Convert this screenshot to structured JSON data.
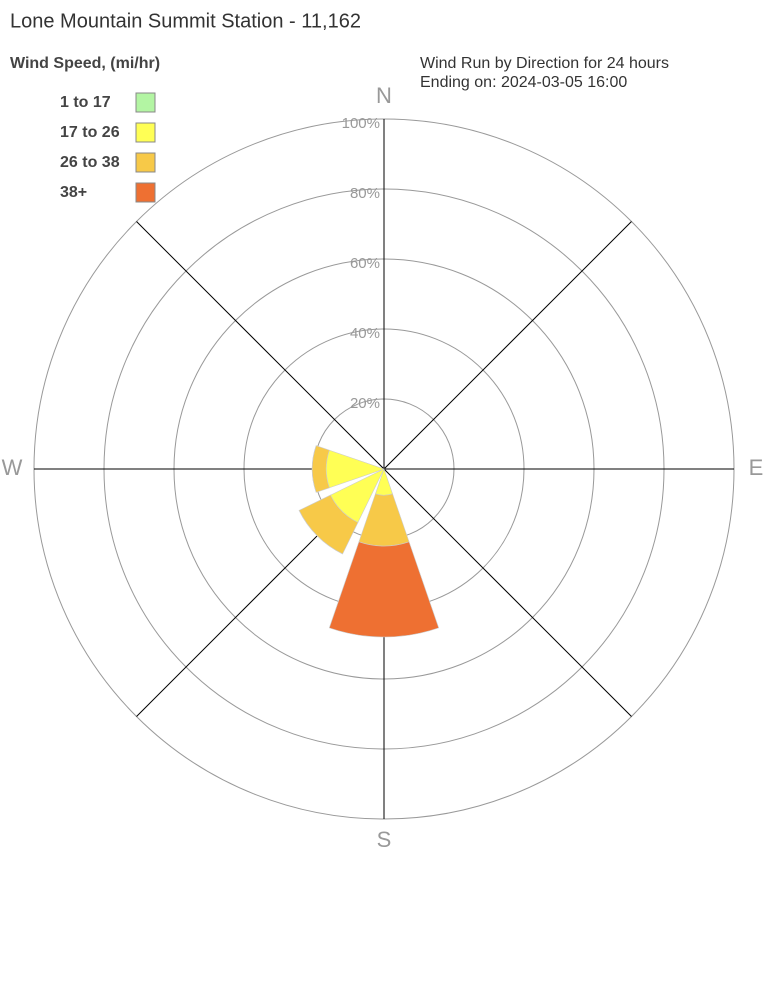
{
  "chart_data": {
    "type": "rose",
    "title": "Lone Mountain Summit Station - 11,162",
    "subtitle": [
      "Wind Run by Direction for 24 hours",
      "Ending on: 2024-03-05 16:00"
    ],
    "legend_title": "Wind Speed, (mi/hr)",
    "compass_labels": [
      "N",
      "E",
      "S",
      "W"
    ],
    "x": [
      270,
      225,
      180
    ],
    "series": [
      {
        "name": "1 to 17",
        "color": "#b3f5a3",
        "values": [
          0,
          0,
          0
        ]
      },
      {
        "name": "17 to 26",
        "color": "#ffff55",
        "values": [
          16.5,
          17,
          7.5
        ]
      },
      {
        "name": "26 to 38",
        "color": "#f7c948",
        "values": [
          4,
          10,
          14.5
        ]
      },
      {
        "name": "38+",
        "color": "#ee7032",
        "values": [
          0,
          0,
          26
        ]
      }
    ],
    "rlim": [
      0,
      100
    ],
    "rticks": [
      {
        "value": 20,
        "label": "20%"
      },
      {
        "value": 40,
        "label": "40%"
      },
      {
        "value": 60,
        "label": "60%"
      },
      {
        "value": 80,
        "label": "80%"
      },
      {
        "value": 100,
        "label": "100%"
      }
    ],
    "grid": true
  }
}
